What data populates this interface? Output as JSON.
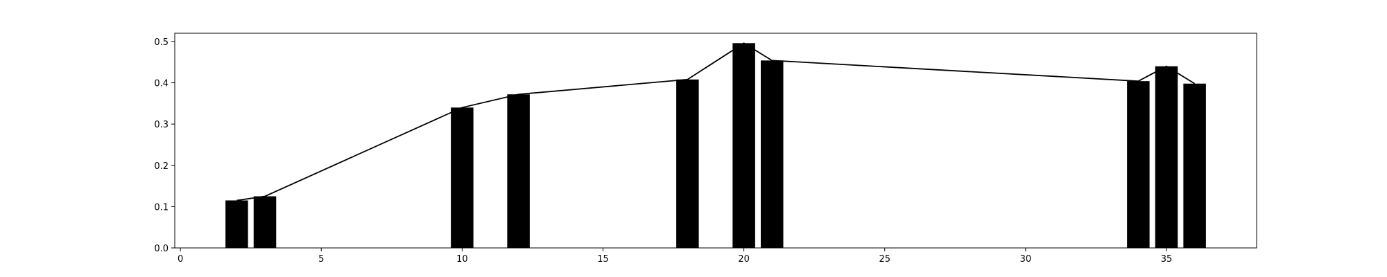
{
  "chart_data": {
    "type": "bar",
    "x": [
      2,
      3,
      10,
      12,
      18,
      20,
      21,
      34,
      35,
      36
    ],
    "values": [
      0.115,
      0.125,
      0.34,
      0.372,
      0.408,
      0.496,
      0.454,
      0.404,
      0.44,
      0.398
    ],
    "bar_width": 0.8,
    "line_overlay": true,
    "bar_color": "#000000",
    "line_color": "#000000",
    "xlim": [
      -0.2,
      38.2
    ],
    "ylim": [
      0,
      0.52
    ],
    "xticks": [
      0,
      5,
      10,
      15,
      20,
      25,
      30,
      35
    ],
    "xtick_labels": [
      "0",
      "5",
      "10",
      "15",
      "20",
      "25",
      "30",
      "35"
    ],
    "yticks": [
      0.0,
      0.1,
      0.2,
      0.3,
      0.4,
      0.5
    ],
    "ytick_labels": [
      "0.0",
      "0.1",
      "0.2",
      "0.3",
      "0.4",
      "0.5"
    ],
    "title": "",
    "xlabel": "",
    "ylabel": "",
    "grid": false,
    "legend": false
  }
}
